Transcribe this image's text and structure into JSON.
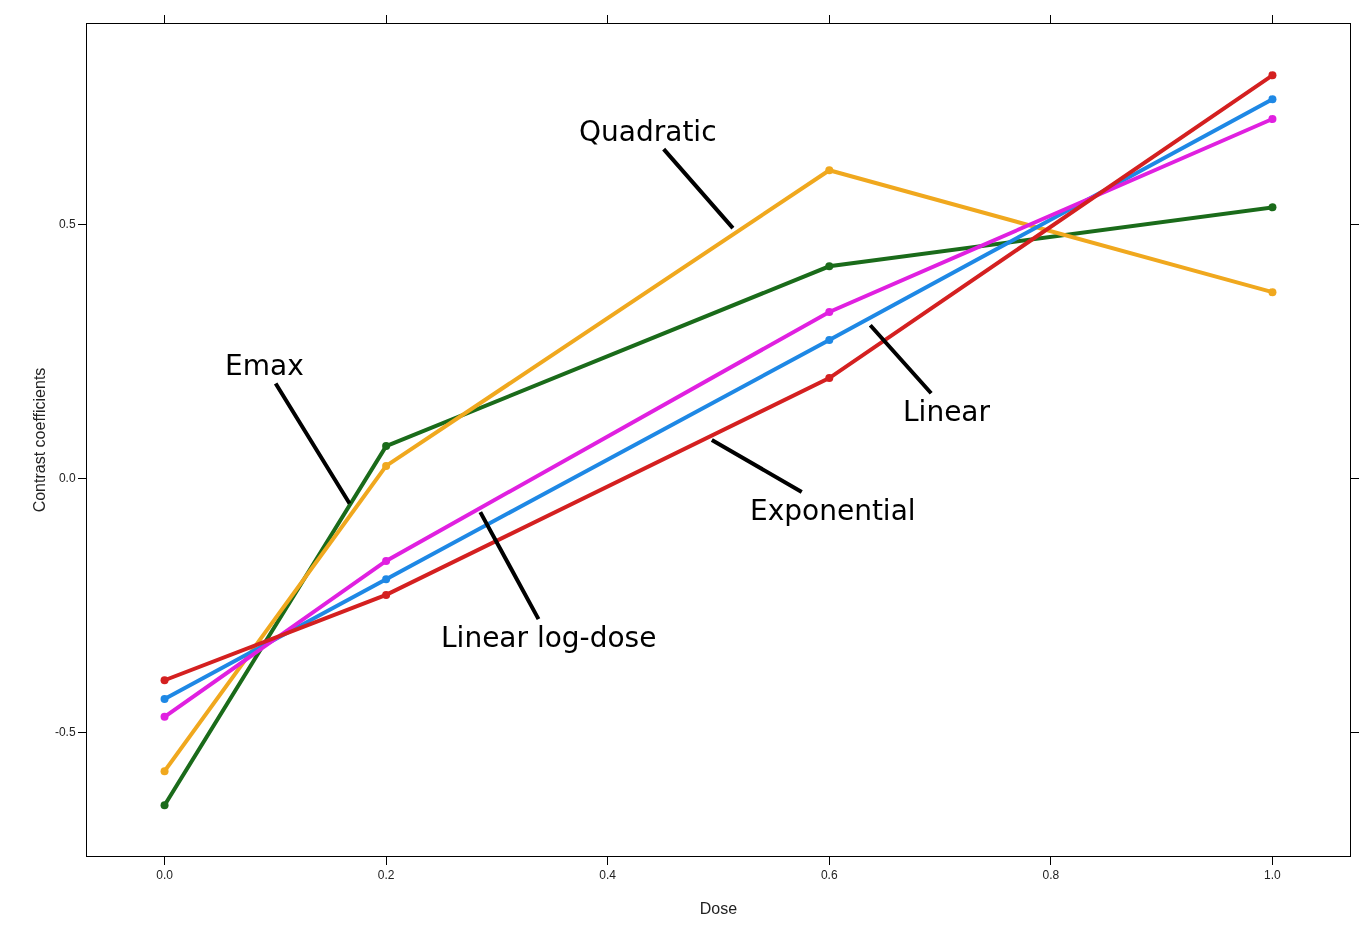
{
  "chart_data": {
    "type": "line",
    "xlabel": "Dose",
    "ylabel": "Contrast coefficients",
    "x": [
      0,
      0.2,
      0.6,
      1.0
    ],
    "series": [
      {
        "color": "#1a6b1a",
        "values": [
          -0.644,
          0.063,
          0.417,
          0.533
        ]
      },
      {
        "color": "#f0a81e",
        "values": [
          -0.577,
          0.024,
          0.606,
          0.366
        ]
      },
      {
        "color": "#1e88e5",
        "values": [
          -0.435,
          -0.199,
          0.272,
          0.746
        ]
      },
      {
        "color": "#e020e0",
        "values": [
          -0.47,
          -0.163,
          0.327,
          0.707
        ]
      },
      {
        "color": "#d42020",
        "values": [
          -0.398,
          -0.23,
          0.197,
          0.793
        ]
      }
    ],
    "annotations": [
      {
        "text": "Quadratic",
        "x": 0.513,
        "y": 0.492
      },
      {
        "text": "Emax",
        "x": 0.167,
        "y": -0.05
      },
      {
        "text": "Linear",
        "x": 0.637,
        "y": 0.301
      },
      {
        "text": "Exponential",
        "x": 0.494,
        "y": 0.075
      },
      {
        "text": "Linear log-dose",
        "x": 0.285,
        "y": -0.067
      }
    ],
    "xlim": [
      -0.07,
      1.07
    ],
    "ylim": [
      -0.744,
      0.894
    ],
    "xticks": [
      {
        "value": 0,
        "label": "0.0"
      },
      {
        "value": 0.2,
        "label": "0.2"
      },
      {
        "value": 0.4,
        "label": "0.4"
      },
      {
        "value": 0.6,
        "label": "0.6"
      },
      {
        "value": 0.8,
        "label": "0.8"
      },
      {
        "value": 1.0,
        "label": "1.0"
      }
    ],
    "yticks": [
      {
        "value": -0.5,
        "label": "-0.5"
      },
      {
        "value": 0,
        "label": "0.0"
      },
      {
        "value": 0.5,
        "label": "0.5"
      }
    ],
    "grid": false,
    "marker": "circle",
    "line_style": "solid"
  }
}
